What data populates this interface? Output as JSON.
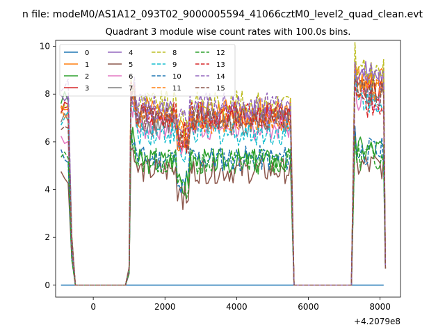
{
  "figure": {
    "suptitle": "n file: modeM0/AS1A12_093T02_9000005594_41066cztM0_level2_quad_clean.evt",
    "title": "Quadrant 3 module wise count rates with 100.0s bins.",
    "offset_text": "+4.2079e8"
  },
  "chart_data": {
    "type": "line",
    "title": "Quadrant 3 module wise count rates with 100.0s bins.",
    "suptitle": "n file: modeM0/AS1A12_093T02_9000005594_41066cztM0_level2_quad_clean.evt",
    "xlabel": "",
    "ylabel": "",
    "x_offset": 420790000,
    "xlim": [
      -1050,
      8570
    ],
    "ylim": [
      -0.5,
      10.25
    ],
    "x_ticks": [
      0,
      2000,
      4000,
      6000,
      8000
    ],
    "x_tick_labels": [
      "0",
      "2000",
      "4000",
      "6000",
      "8000"
    ],
    "y_ticks": [
      0,
      2,
      4,
      6,
      8,
      10
    ],
    "y_tick_labels": [
      "0",
      "2",
      "4",
      "6",
      "8",
      "10"
    ],
    "grid": false,
    "legend": {
      "placement": "top-left",
      "columns": 4
    },
    "series": [
      {
        "name": "0",
        "color": "#1f77b4",
        "dash": "solid",
        "level_a": 0.0,
        "level_b": 0.0,
        "level_c": 0.0,
        "seed": 1
      },
      {
        "name": "1",
        "color": "#ff7f0e",
        "dash": "solid",
        "level_a": 7.6,
        "level_b": 7.3,
        "level_c": 8.6,
        "seed": 2
      },
      {
        "name": "2",
        "color": "#2ca02c",
        "dash": "solid",
        "level_a": 7.8,
        "level_b": 5.2,
        "level_c": 5.7,
        "seed": 3
      },
      {
        "name": "3",
        "color": "#d62728",
        "dash": "solid",
        "level_a": 7.5,
        "level_b": 7.0,
        "level_c": 8.3,
        "seed": 4
      },
      {
        "name": "4",
        "color": "#9467bd",
        "dash": "solid",
        "level_a": 7.7,
        "level_b": 7.2,
        "level_c": 8.8,
        "seed": 5
      },
      {
        "name": "5",
        "color": "#8c564b",
        "dash": "solid",
        "level_a": 4.6,
        "level_b": 4.8,
        "level_c": 5.0,
        "seed": 6
      },
      {
        "name": "6",
        "color": "#e377c2",
        "dash": "solid",
        "level_a": 6.2,
        "level_b": 6.6,
        "level_c": 7.9,
        "seed": 7
      },
      {
        "name": "7",
        "color": "#7f7f7f",
        "dash": "solid",
        "level_a": 6.9,
        "level_b": 6.8,
        "level_c": 8.0,
        "seed": 8
      },
      {
        "name": "8",
        "color": "#bcbd22",
        "dash": "dashed",
        "level_a": 7.4,
        "level_b": 7.6,
        "level_c": 8.9,
        "seed": 9
      },
      {
        "name": "9",
        "color": "#17becf",
        "dash": "dashed",
        "level_a": 7.0,
        "level_b": 6.4,
        "level_c": 7.8,
        "seed": 10
      },
      {
        "name": "10",
        "color": "#1f77b4",
        "dash": "dashed",
        "level_a": 5.4,
        "level_b": 5.3,
        "level_c": 5.6,
        "seed": 11
      },
      {
        "name": "11",
        "color": "#ff7f0e",
        "dash": "dashed",
        "level_a": 7.3,
        "level_b": 6.9,
        "level_c": 8.3,
        "seed": 12
      },
      {
        "name": "12",
        "color": "#2ca02c",
        "dash": "dashed",
        "level_a": 5.3,
        "level_b": 5.2,
        "level_c": 5.4,
        "seed": 13
      },
      {
        "name": "13",
        "color": "#d62728",
        "dash": "dashed",
        "level_a": 7.3,
        "level_b": 7.1,
        "level_c": 7.6,
        "seed": 14
      },
      {
        "name": "14",
        "color": "#9467bd",
        "dash": "dashed",
        "level_a": 8.3,
        "level_b": 7.5,
        "level_c": 8.7,
        "seed": 15
      },
      {
        "name": "15",
        "color": "#8c564b",
        "dash": "dashed",
        "level_a": 6.8,
        "level_b": 7.0,
        "level_c": 8.1,
        "seed": 16
      }
    ],
    "segments": {
      "a_x": [
        -900,
        -800,
        -700,
        -600
      ],
      "gap1_x": [
        -500,
        -400,
        -300,
        -200,
        -100,
        0,
        100,
        200,
        300,
        400,
        500,
        600,
        700,
        800,
        900
      ],
      "b_x_start": 1000,
      "b_x_end": 5500,
      "b_x_step": 50,
      "gap2_x": [
        5600,
        5700,
        5800,
        5900,
        6000,
        6100,
        6200,
        6300,
        6400,
        6500,
        6600,
        6700,
        6800,
        6900,
        7000,
        7100,
        7200
      ],
      "c_x_start": 7300,
      "c_x_end": 8100,
      "c_x_step": 50
    }
  }
}
